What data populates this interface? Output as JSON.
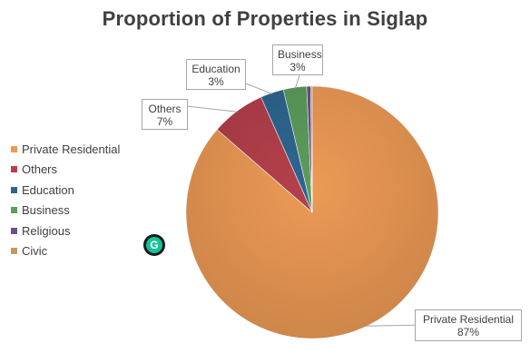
{
  "chart_data": {
    "type": "pie",
    "title": "Proportion of Properties in Siglap",
    "categories": [
      "Private Residential",
      "Others",
      "Education",
      "Business",
      "Religious",
      "Civic"
    ],
    "values": [
      87,
      7,
      3,
      3,
      0.5,
      0.2
    ],
    "data_labels": [
      {
        "category": "Private Residential",
        "label": "87%"
      },
      {
        "category": "Others",
        "label": "7%"
      },
      {
        "category": "Education",
        "label": "3%"
      },
      {
        "category": "Business",
        "label": "3%"
      }
    ],
    "colors": [
      "#ED9A55",
      "#B5404B",
      "#2E6690",
      "#5C9C5C",
      "#6B4F8C",
      "#C89A5A"
    ],
    "legend_position": "left",
    "label_style": "callout"
  },
  "overlay": {
    "grammarly_icon": "grammarly-icon",
    "grammarly_glyph": "G"
  }
}
